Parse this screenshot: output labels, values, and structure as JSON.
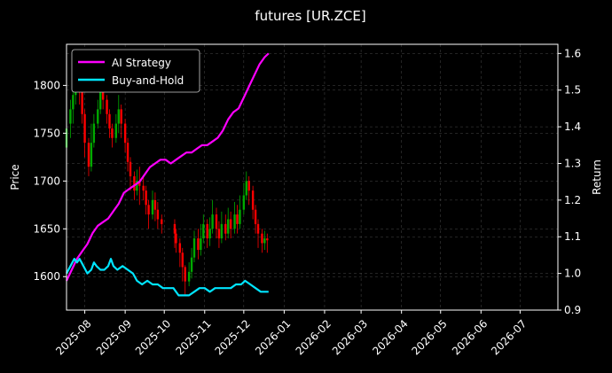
{
  "chart_data": {
    "type": "line",
    "title": "futures [UR.ZCE]",
    "xlabel": "",
    "ylabel_left": "Price",
    "ylabel_right": "Return",
    "x_range": [
      "2025-07-18",
      "2026-07-30"
    ],
    "x_ticks": [
      "2025-08",
      "2025-09",
      "2025-10",
      "2025-11",
      "2025-12",
      "2026-01",
      "2026-02",
      "2026-03",
      "2026-04",
      "2026-05",
      "2026-06",
      "2026-07"
    ],
    "x_tick_dates": [
      "2025-08-01",
      "2025-09-01",
      "2025-10-01",
      "2025-11-01",
      "2025-12-01",
      "2026-01-01",
      "2026-02-01",
      "2026-03-01",
      "2026-04-01",
      "2026-05-01",
      "2026-06-01",
      "2026-07-01"
    ],
    "ylim_left": [
      1565,
      1843
    ],
    "yticks_left": [
      1600,
      1650,
      1700,
      1750,
      1800
    ],
    "ylim_right": [
      0.9,
      1.625
    ],
    "yticks_right": [
      0.9,
      1.0,
      1.1,
      1.2,
      1.3,
      1.4,
      1.5,
      1.6
    ],
    "grid": true,
    "legend_position": "top-left",
    "background": "#000000",
    "colors": {
      "up": "#00aa00",
      "down": "#ff0000",
      "ai": "#ff00ff",
      "bh": "#00e5ff"
    },
    "series": [
      {
        "name": "AI Strategy",
        "axis": "right",
        "points": [
          [
            "2025-07-18",
            0.98
          ],
          [
            "2025-07-22",
            1.01
          ],
          [
            "2025-07-26",
            1.04
          ],
          [
            "2025-07-30",
            1.06
          ],
          [
            "2025-08-03",
            1.08
          ],
          [
            "2025-08-07",
            1.11
          ],
          [
            "2025-08-11",
            1.13
          ],
          [
            "2025-08-15",
            1.14
          ],
          [
            "2025-08-19",
            1.15
          ],
          [
            "2025-08-23",
            1.17
          ],
          [
            "2025-08-27",
            1.19
          ],
          [
            "2025-08-31",
            1.22
          ],
          [
            "2025-09-04",
            1.23
          ],
          [
            "2025-09-08",
            1.24
          ],
          [
            "2025-09-12",
            1.25
          ],
          [
            "2025-09-16",
            1.27
          ],
          [
            "2025-09-20",
            1.29
          ],
          [
            "2025-09-24",
            1.3
          ],
          [
            "2025-09-28",
            1.31
          ],
          [
            "2025-10-02",
            1.31
          ],
          [
            "2025-10-06",
            1.3
          ],
          [
            "2025-10-10",
            1.31
          ],
          [
            "2025-10-14",
            1.32
          ],
          [
            "2025-10-18",
            1.33
          ],
          [
            "2025-10-22",
            1.33
          ],
          [
            "2025-10-26",
            1.34
          ],
          [
            "2025-10-30",
            1.35
          ],
          [
            "2025-11-03",
            1.35
          ],
          [
            "2025-11-07",
            1.36
          ],
          [
            "2025-11-11",
            1.37
          ],
          [
            "2025-11-15",
            1.39
          ],
          [
            "2025-11-19",
            1.42
          ],
          [
            "2025-11-23",
            1.44
          ],
          [
            "2025-11-27",
            1.45
          ],
          [
            "2025-12-01",
            1.48
          ],
          [
            "2025-12-05",
            1.51
          ],
          [
            "2025-12-09",
            1.54
          ],
          [
            "2025-12-13",
            1.57
          ],
          [
            "2025-12-17",
            1.59
          ],
          [
            "2025-12-20",
            1.6
          ]
        ]
      },
      {
        "name": "Buy-and-Hold",
        "axis": "right",
        "points": [
          [
            "2025-07-18",
            1.0
          ],
          [
            "2025-07-21",
            1.02
          ],
          [
            "2025-07-24",
            1.04
          ],
          [
            "2025-07-26",
            1.03
          ],
          [
            "2025-07-28",
            1.04
          ],
          [
            "2025-07-31",
            1.02
          ],
          [
            "2025-08-03",
            1.0
          ],
          [
            "2025-08-06",
            1.01
          ],
          [
            "2025-08-08",
            1.03
          ],
          [
            "2025-08-10",
            1.02
          ],
          [
            "2025-08-13",
            1.01
          ],
          [
            "2025-08-16",
            1.01
          ],
          [
            "2025-08-19",
            1.02
          ],
          [
            "2025-08-21",
            1.04
          ],
          [
            "2025-08-23",
            1.02
          ],
          [
            "2025-08-26",
            1.01
          ],
          [
            "2025-08-30",
            1.02
          ],
          [
            "2025-09-03",
            1.01
          ],
          [
            "2025-09-07",
            1.0
          ],
          [
            "2025-09-10",
            0.98
          ],
          [
            "2025-09-14",
            0.97
          ],
          [
            "2025-09-18",
            0.98
          ],
          [
            "2025-09-22",
            0.97
          ],
          [
            "2025-09-26",
            0.97
          ],
          [
            "2025-09-30",
            0.96
          ],
          [
            "2025-10-04",
            0.96
          ],
          [
            "2025-10-08",
            0.96
          ],
          [
            "2025-10-12",
            0.94
          ],
          [
            "2025-10-16",
            0.94
          ],
          [
            "2025-10-20",
            0.94
          ],
          [
            "2025-10-24",
            0.95
          ],
          [
            "2025-10-28",
            0.96
          ],
          [
            "2025-11-01",
            0.96
          ],
          [
            "2025-11-05",
            0.95
          ],
          [
            "2025-11-09",
            0.96
          ],
          [
            "2025-11-13",
            0.96
          ],
          [
            "2025-11-17",
            0.96
          ],
          [
            "2025-11-21",
            0.96
          ],
          [
            "2025-11-25",
            0.97
          ],
          [
            "2025-11-29",
            0.97
          ],
          [
            "2025-12-02",
            0.98
          ],
          [
            "2025-12-06",
            0.97
          ],
          [
            "2025-12-10",
            0.96
          ],
          [
            "2025-12-14",
            0.95
          ],
          [
            "2025-12-20",
            0.95
          ]
        ]
      },
      {
        "name": "",
        "axis": "left",
        "type": "candlestick",
        "ohlc": [
          [
            "2025-07-18",
            1735,
            1755,
            1730,
            1760
          ],
          [
            "2025-07-21",
            1760,
            1775,
            1745,
            1785
          ],
          [
            "2025-07-23",
            1775,
            1790,
            1760,
            1800
          ],
          [
            "2025-07-25",
            1790,
            1810,
            1780,
            1825
          ],
          [
            "2025-07-28",
            1810,
            1795,
            1780,
            1820
          ],
          [
            "2025-07-30",
            1795,
            1770,
            1760,
            1800
          ],
          [
            "2025-08-01",
            1770,
            1740,
            1725,
            1775
          ],
          [
            "2025-08-04",
            1740,
            1715,
            1705,
            1745
          ],
          [
            "2025-08-06",
            1715,
            1740,
            1710,
            1760
          ],
          [
            "2025-08-08",
            1740,
            1760,
            1735,
            1770
          ],
          [
            "2025-08-11",
            1760,
            1775,
            1755,
            1785
          ],
          [
            "2025-08-13",
            1775,
            1800,
            1770,
            1810
          ],
          [
            "2025-08-15",
            1800,
            1785,
            1775,
            1810
          ],
          [
            "2025-08-18",
            1785,
            1770,
            1760,
            1790
          ],
          [
            "2025-08-20",
            1770,
            1755,
            1745,
            1775
          ],
          [
            "2025-08-22",
            1755,
            1745,
            1735,
            1760
          ],
          [
            "2025-08-25",
            1745,
            1760,
            1740,
            1770
          ],
          [
            "2025-08-27",
            1760,
            1775,
            1750,
            1790
          ],
          [
            "2025-08-29",
            1775,
            1760,
            1745,
            1780
          ],
          [
            "2025-09-01",
            1760,
            1740,
            1730,
            1765
          ],
          [
            "2025-09-03",
            1740,
            1720,
            1710,
            1745
          ],
          [
            "2025-09-05",
            1720,
            1705,
            1690,
            1725
          ],
          [
            "2025-09-08",
            1705,
            1690,
            1680,
            1710
          ],
          [
            "2025-09-10",
            1690,
            1700,
            1685,
            1712
          ],
          [
            "2025-09-12",
            1700,
            1695,
            1675,
            1715
          ],
          [
            "2025-09-15",
            1695,
            1690,
            1680,
            1705
          ],
          [
            "2025-09-17",
            1690,
            1675,
            1665,
            1695
          ],
          [
            "2025-09-19",
            1675,
            1665,
            1650,
            1680
          ],
          [
            "2025-09-22",
            1665,
            1680,
            1660,
            1690
          ],
          [
            "2025-09-24",
            1680,
            1670,
            1658,
            1688
          ],
          [
            "2025-09-26",
            1670,
            1660,
            1650,
            1678
          ],
          [
            "2025-09-29",
            1660,
            1655,
            1645,
            1665
          ],
          [
            "2025-10-09",
            1655,
            1645,
            1630,
            1660
          ],
          [
            "2025-10-10",
            1645,
            1635,
            1625,
            1650
          ],
          [
            "2025-10-13",
            1635,
            1625,
            1610,
            1640
          ],
          [
            "2025-10-15",
            1625,
            1610,
            1595,
            1630
          ],
          [
            "2025-10-17",
            1610,
            1595,
            1580,
            1612
          ],
          [
            "2025-10-20",
            1595,
            1605,
            1590,
            1615
          ],
          [
            "2025-10-22",
            1605,
            1620,
            1598,
            1630
          ],
          [
            "2025-10-24",
            1620,
            1640,
            1615,
            1648
          ],
          [
            "2025-10-27",
            1640,
            1628,
            1618,
            1650
          ],
          [
            "2025-10-29",
            1628,
            1640,
            1622,
            1655
          ],
          [
            "2025-10-31",
            1640,
            1655,
            1635,
            1665
          ],
          [
            "2025-11-03",
            1655,
            1640,
            1630,
            1660
          ],
          [
            "2025-11-05",
            1640,
            1650,
            1632,
            1662
          ],
          [
            "2025-11-07",
            1650,
            1665,
            1645,
            1680
          ],
          [
            "2025-11-10",
            1665,
            1650,
            1640,
            1672
          ],
          [
            "2025-11-12",
            1650,
            1640,
            1630,
            1658
          ],
          [
            "2025-11-14",
            1640,
            1655,
            1635,
            1668
          ],
          [
            "2025-11-17",
            1655,
            1645,
            1638,
            1665
          ],
          [
            "2025-11-19",
            1645,
            1660,
            1640,
            1672
          ],
          [
            "2025-11-21",
            1660,
            1650,
            1640,
            1668
          ],
          [
            "2025-11-24",
            1650,
            1665,
            1645,
            1678
          ],
          [
            "2025-11-26",
            1665,
            1655,
            1645,
            1675
          ],
          [
            "2025-11-28",
            1655,
            1670,
            1650,
            1685
          ],
          [
            "2025-12-01",
            1670,
            1685,
            1665,
            1698
          ],
          [
            "2025-12-03",
            1685,
            1700,
            1680,
            1710
          ],
          [
            "2025-12-05",
            1700,
            1690,
            1675,
            1705
          ],
          [
            "2025-12-08",
            1690,
            1670,
            1660,
            1695
          ],
          [
            "2025-12-10",
            1670,
            1655,
            1645,
            1675
          ],
          [
            "2025-12-12",
            1655,
            1645,
            1630,
            1660
          ],
          [
            "2025-12-15",
            1645,
            1635,
            1625,
            1650
          ],
          [
            "2025-12-17",
            1635,
            1640,
            1628,
            1648
          ],
          [
            "2025-12-19",
            1640,
            1638,
            1625,
            1645
          ]
        ]
      }
    ]
  }
}
